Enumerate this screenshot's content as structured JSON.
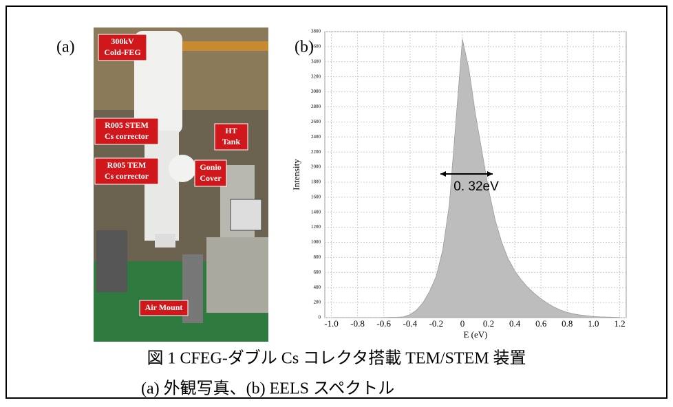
{
  "panel_a": {
    "label": "(a)",
    "labels": [
      [
        "300kV",
        "Cold-FEG"
      ],
      [
        "R005 STEM",
        "Cs corrector"
      ],
      [
        "HT",
        "Tank"
      ],
      [
        "R005 TEM",
        "Cs corrector"
      ],
      [
        "Gonio",
        "Cover"
      ],
      [
        "Air Mount"
      ]
    ]
  },
  "panel_b": {
    "label": "(b)"
  },
  "chart_data": {
    "type": "area",
    "x_label": "E (eV)",
    "y_label": "Intensity",
    "annotation": "0. 32eV",
    "x": [
      -1.0,
      -0.95,
      -0.9,
      -0.85,
      -0.8,
      -0.75,
      -0.7,
      -0.65,
      -0.6,
      -0.55,
      -0.5,
      -0.45,
      -0.4,
      -0.35,
      -0.3,
      -0.25,
      -0.2,
      -0.15,
      -0.1,
      -0.05,
      0,
      0.05,
      0.1,
      0.15,
      0.2,
      0.25,
      0.3,
      0.35,
      0.4,
      0.45,
      0.5,
      0.55,
      0.6,
      0.65,
      0.7,
      0.75,
      0.8,
      0.85,
      0.9,
      0.95,
      1.0,
      1.05,
      1.1,
      1.15,
      1.2
    ],
    "values": [
      0,
      0,
      0,
      0,
      0,
      0,
      0,
      0,
      2,
      4,
      6,
      10,
      40,
      100,
      200,
      350,
      550,
      900,
      1500,
      2600,
      3700,
      3300,
      2700,
      2200,
      1700,
      1300,
      1000,
      780,
      620,
      500,
      400,
      320,
      250,
      190,
      140,
      100,
      70,
      50,
      35,
      25,
      15,
      10,
      8,
      5,
      3
    ],
    "color": "#bdbdbd",
    "xlim": [
      -1.05,
      1.25
    ],
    "xticks": [
      {
        "value": -1.0,
        "label": "-1.0"
      },
      -0.8,
      -0.6,
      -0.4,
      -0.2,
      0,
      0.2,
      0.4,
      0.6,
      0.8,
      {
        "value": 1.0,
        "label": "1.0"
      },
      1.2
    ],
    "ylim": [
      0,
      3800
    ],
    "yticks": [
      0,
      200,
      400,
      600,
      800,
      1000,
      1200,
      1400,
      1600,
      1800,
      2000,
      2200,
      2400,
      2600,
      2800,
      3000,
      3200,
      3400,
      3600,
      3800
    ],
    "grid": true
  },
  "caption": [
    "図 1 CFEG-ダブル Cs コレクタ搭載 TEM/STEM 装置",
    "(a) 外観写真、(b) EELS スペクトル"
  ]
}
